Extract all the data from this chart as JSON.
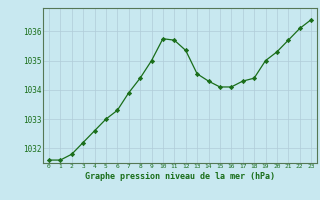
{
  "x": [
    0,
    1,
    2,
    3,
    4,
    5,
    6,
    7,
    8,
    9,
    10,
    11,
    12,
    13,
    14,
    15,
    16,
    17,
    18,
    19,
    20,
    21,
    22,
    23
  ],
  "y": [
    1031.6,
    1031.6,
    1031.8,
    1032.2,
    1032.6,
    1033.0,
    1033.3,
    1033.9,
    1034.4,
    1035.0,
    1035.75,
    1035.7,
    1035.35,
    1034.55,
    1034.3,
    1034.1,
    1034.1,
    1034.3,
    1034.4,
    1035.0,
    1035.3,
    1035.7,
    1036.1,
    1036.4
  ],
  "line_color": "#1a6e1a",
  "marker_color": "#1a6e1a",
  "bg_color": "#c8e8f0",
  "grid_color": "#b0ccd8",
  "axis_label_color": "#1a6e1a",
  "tick_label_color": "#1a6e1a",
  "xlabel": "Graphe pression niveau de la mer (hPa)",
  "ylim_min": 1031.5,
  "ylim_max": 1036.8,
  "yticks": [
    1032,
    1033,
    1034,
    1035,
    1036
  ],
  "xticks": [
    0,
    1,
    2,
    3,
    4,
    5,
    6,
    7,
    8,
    9,
    10,
    11,
    12,
    13,
    14,
    15,
    16,
    17,
    18,
    19,
    20,
    21,
    22,
    23
  ]
}
